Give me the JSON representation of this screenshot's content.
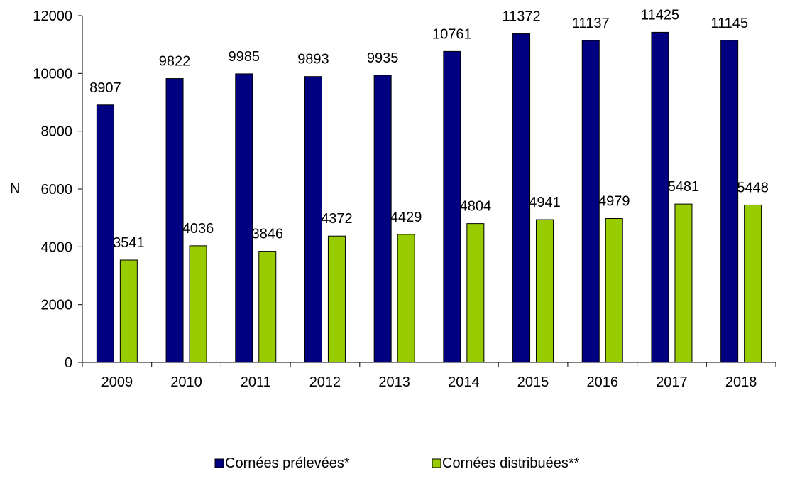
{
  "chart_data": {
    "type": "bar",
    "title": "",
    "xlabel": "",
    "ylabel": "N",
    "ylim": [
      0,
      12000
    ],
    "yticks": [
      0,
      2000,
      4000,
      6000,
      8000,
      10000,
      12000
    ],
    "ytick_labels": [
      "0",
      "2000",
      "4000",
      "6000",
      "8000",
      "10000",
      "12000"
    ],
    "grid": false,
    "legend_position": "bottom",
    "categories": [
      "2009",
      "2010",
      "2011",
      "2012",
      "2013",
      "2014",
      "2015",
      "2016",
      "2017",
      "2018"
    ],
    "series": [
      {
        "name": "Cornées prélevées*",
        "color": "#000080",
        "values": [
          8907,
          9822,
          9985,
          9893,
          9935,
          10761,
          11372,
          11137,
          11425,
          11145
        ],
        "labels": [
          "8907",
          "9822",
          "9985",
          "9893",
          "9935",
          "10761",
          "11372",
          "11137",
          "11425",
          "11145"
        ]
      },
      {
        "name": "Cornées distribuées**",
        "color": "#99CC00",
        "values": [
          3541,
          4036,
          3846,
          4372,
          4429,
          4804,
          4941,
          4979,
          5481,
          5448
        ],
        "labels": [
          "3541",
          "4036",
          "3846",
          "4372",
          "4429",
          "4804",
          "4941",
          "4979",
          "5481",
          "5448"
        ]
      }
    ]
  }
}
